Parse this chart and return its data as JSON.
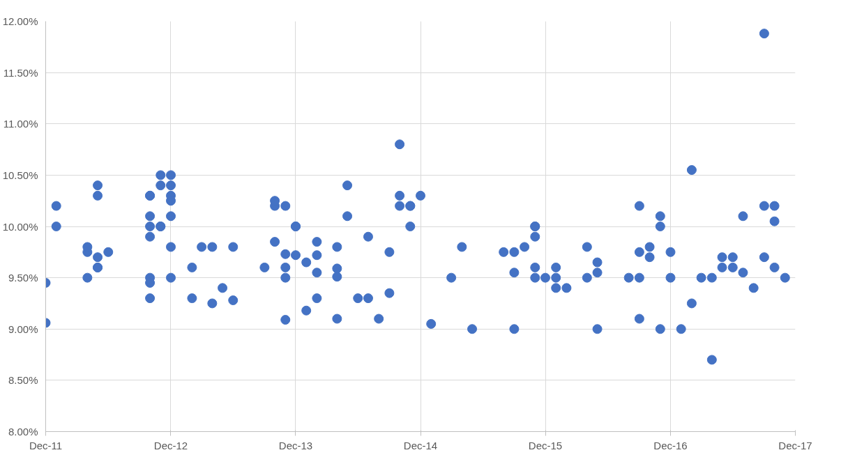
{
  "chart_data": {
    "type": "scatter",
    "color": "#4472c4",
    "marker": "circle",
    "grid": true,
    "x": [
      "2011-12",
      "2011-12",
      "2012-01",
      "2012-01",
      "2012-04",
      "2012-04",
      "2012-04",
      "2012-05",
      "2012-05",
      "2012-05",
      "2012-05",
      "2012-05",
      "2012-06",
      "2012-10",
      "2012-10",
      "2012-10",
      "2012-10",
      "2012-10",
      "2012-10",
      "2012-10",
      "2012-10",
      "2012-11",
      "2012-11",
      "2012-11",
      "2012-11",
      "2012-12",
      "2012-12",
      "2012-12",
      "2012-12",
      "2012-12",
      "2012-12",
      "2012-12",
      "2013-02",
      "2013-02",
      "2013-03",
      "2013-04",
      "2013-04",
      "2013-05",
      "2013-06",
      "2013-06",
      "2013-09",
      "2013-10",
      "2013-10",
      "2013-10",
      "2013-11",
      "2013-11",
      "2013-11",
      "2013-11",
      "2013-11",
      "2013-12",
      "2013-12",
      "2013-12",
      "2014-01",
      "2014-01",
      "2014-02",
      "2014-02",
      "2014-02",
      "2014-02",
      "2014-04",
      "2014-04",
      "2014-04",
      "2014-04",
      "2014-05",
      "2014-05",
      "2014-06",
      "2014-07",
      "2014-07",
      "2014-08",
      "2014-09",
      "2014-09",
      "2014-10",
      "2014-10",
      "2014-10",
      "2014-11",
      "2014-11",
      "2014-11",
      "2014-12",
      "2015-01",
      "2015-03",
      "2015-04",
      "2015-05",
      "2015-08",
      "2015-09",
      "2015-09",
      "2015-09",
      "2015-10",
      "2015-11",
      "2015-11",
      "2015-11",
      "2015-11",
      "2015-11",
      "2015-12",
      "2016-01",
      "2016-01",
      "2016-01",
      "2016-02",
      "2016-04",
      "2016-04",
      "2016-05",
      "2016-05",
      "2016-05",
      "2016-08",
      "2016-09",
      "2016-09",
      "2016-09",
      "2016-09",
      "2016-10",
      "2016-10",
      "2016-11",
      "2016-11",
      "2016-11",
      "2016-12",
      "2016-12",
      "2017-01",
      "2017-02",
      "2017-02",
      "2017-03",
      "2017-04",
      "2017-04",
      "2017-05",
      "2017-05",
      "2017-06",
      "2017-06",
      "2017-07",
      "2017-07",
      "2017-08",
      "2017-09",
      "2017-09",
      "2017-09",
      "2017-10",
      "2017-10",
      "2017-10",
      "2017-11"
    ],
    "values": [
      9.45,
      9.06,
      10.2,
      10.0,
      9.5,
      9.75,
      9.8,
      9.6,
      9.7,
      10.3,
      10.4,
      9.6,
      9.75,
      10.3,
      9.5,
      9.45,
      9.3,
      9.9,
      10.0,
      10.3,
      10.1,
      10.5,
      10.4,
      10.0,
      10.0,
      10.5,
      10.4,
      10.3,
      10.25,
      10.1,
      9.5,
      9.8,
      9.6,
      9.3,
      9.8,
      9.8,
      9.25,
      9.4,
      9.28,
      9.8,
      9.6,
      10.2,
      10.25,
      9.85,
      9.5,
      10.2,
      9.6,
      9.73,
      9.09,
      10.0,
      9.72,
      10.0,
      9.65,
      9.18,
      9.3,
      9.85,
      9.55,
      9.72,
      9.8,
      9.51,
      9.59,
      9.1,
      10.4,
      10.1,
      9.3,
      9.3,
      9.9,
      9.1,
      9.35,
      9.75,
      10.8,
      10.2,
      10.3,
      10.2,
      10.2,
      10.0,
      10.3,
      9.05,
      9.5,
      9.8,
      9.0,
      9.75,
      9.55,
      9.75,
      9.0,
      9.8,
      10.0,
      10.0,
      9.9,
      9.6,
      9.5,
      9.5,
      9.4,
      9.6,
      9.5,
      9.4,
      9.8,
      9.5,
      9.65,
      9.55,
      9.0,
      9.5,
      9.75,
      9.5,
      9.1,
      10.2,
      9.7,
      9.8,
      10.0,
      10.1,
      9.0,
      9.75,
      9.5,
      9.0,
      10.55,
      9.25,
      9.5,
      9.5,
      8.7,
      9.6,
      9.7,
      9.7,
      9.6,
      9.55,
      10.1,
      9.4,
      9.7,
      11.88,
      10.2,
      9.6,
      10.2,
      10.05,
      9.5
    ],
    "xlim": [
      "2011-12",
      "2017-12"
    ],
    "xticks": [
      {
        "value": "2011-12",
        "label": "Dec-11"
      },
      {
        "value": "2012-12",
        "label": "Dec-12"
      },
      {
        "value": "2013-12",
        "label": "Dec-13"
      },
      {
        "value": "2014-12",
        "label": "Dec-14"
      },
      {
        "value": "2015-12",
        "label": "Dec-15"
      },
      {
        "value": "2016-12",
        "label": "Dec-16"
      },
      {
        "value": "2017-12",
        "label": "Dec-17"
      }
    ],
    "ylim": [
      8,
      12
    ],
    "yticks": [
      {
        "value": 8,
        "label": "8.00%"
      },
      {
        "value": 8.5,
        "label": "8.50%"
      },
      {
        "value": 9,
        "label": "9.00%"
      },
      {
        "value": 9.5,
        "label": "9.50%"
      },
      {
        "value": 10,
        "label": "10.00%"
      },
      {
        "value": 10.5,
        "label": "10.50%"
      },
      {
        "value": 11,
        "label": "11.00%"
      },
      {
        "value": 11.5,
        "label": "11.50%"
      },
      {
        "value": 12,
        "label": "12.00%"
      }
    ]
  }
}
